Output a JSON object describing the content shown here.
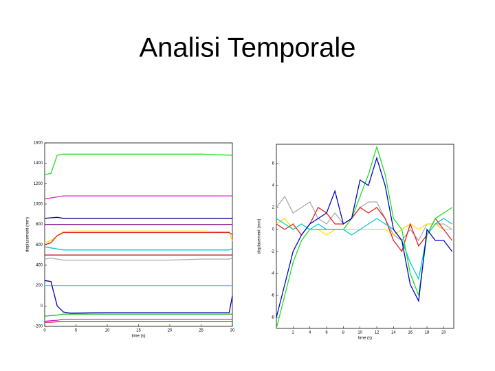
{
  "title": "Analisi Temporale",
  "chart_data": [
    {
      "type": "line",
      "xlabel": "time (s)",
      "ylabel": "displacement (mm)",
      "xlim": [
        0,
        30
      ],
      "xticks": [
        0,
        5,
        10,
        15,
        20,
        25,
        30
      ],
      "ylim": [
        -200,
        1600
      ],
      "yticks": [
        -200,
        0,
        200,
        400,
        600,
        800,
        1000,
        1200,
        1400,
        1600
      ],
      "x": [
        0,
        1,
        2,
        3,
        4,
        5,
        10,
        15,
        20,
        25,
        29.5,
        30
      ],
      "series": [
        {
          "color": "#22dd22",
          "values": [
            1290,
            1300,
            1480,
            1490,
            1490,
            1490,
            1490,
            1490,
            1490,
            1490,
            1480,
            1480
          ]
        },
        {
          "color": "#cc22cc",
          "values": [
            1050,
            1060,
            1070,
            1080,
            1080,
            1080,
            1080,
            1080,
            1080,
            1080,
            1080,
            1080
          ]
        },
        {
          "color": "#000088",
          "values": [
            860,
            865,
            870,
            860,
            860,
            860,
            860,
            860,
            860,
            860,
            860,
            860
          ]
        },
        {
          "color": "#882288",
          "values": [
            800,
            800,
            800,
            800,
            800,
            800,
            800,
            800,
            800,
            800,
            800,
            800
          ]
        },
        {
          "color": "#ffdd00",
          "values": [
            620,
            640,
            690,
            730,
            735,
            735,
            735,
            735,
            735,
            735,
            730,
            640
          ]
        },
        {
          "color": "#dd2222",
          "values": [
            600,
            620,
            690,
            720,
            720,
            720,
            720,
            720,
            720,
            720,
            720,
            700
          ]
        },
        {
          "color": "#00cccc",
          "values": [
            580,
            570,
            560,
            550,
            550,
            550,
            550,
            550,
            550,
            550,
            550,
            560
          ]
        },
        {
          "color": "#aaaaaa",
          "values": [
            460,
            470,
            460,
            450,
            450,
            450,
            450,
            450,
            450,
            460,
            460,
            470
          ]
        },
        {
          "color": "#aa2222",
          "values": [
            500,
            500,
            500,
            500,
            500,
            500,
            500,
            500,
            500,
            500,
            500,
            500
          ]
        },
        {
          "color": "#44dddd",
          "values": [
            200,
            200,
            200,
            200,
            200,
            200,
            200,
            200,
            200,
            200,
            200,
            200
          ]
        },
        {
          "color": "#0000aa",
          "values": [
            250,
            240,
            0,
            -60,
            -70,
            -70,
            -65,
            -65,
            -65,
            -65,
            -65,
            100
          ]
        },
        {
          "color": "#22bb22",
          "values": [
            -100,
            -95,
            -90,
            -80,
            -80,
            -80,
            -80,
            -80,
            -80,
            -80,
            -80,
            -80
          ]
        },
        {
          "color": "#cc22cc",
          "values": [
            -150,
            -145,
            -140,
            -130,
            -130,
            -130,
            -130,
            -130,
            -130,
            -130,
            -130,
            -130
          ]
        },
        {
          "color": "#dd2222",
          "values": [
            -160,
            -160,
            -155,
            -150,
            -150,
            -150,
            -150,
            -150,
            -150,
            -150,
            -150,
            -150
          ]
        }
      ]
    },
    {
      "type": "line",
      "xlabel": "time (s)",
      "ylabel": "displacement (mm)",
      "xlim": [
        0,
        21.2
      ],
      "xticks": [
        2,
        4,
        6,
        8,
        10,
        12,
        14,
        16,
        18,
        20
      ],
      "ylim": [
        -9,
        7.75
      ],
      "yticks": [
        -8,
        -6,
        -4,
        -2,
        0,
        2,
        4,
        6
      ],
      "x": [
        0,
        1,
        2,
        3,
        4,
        5,
        6,
        7,
        8,
        9,
        10,
        11,
        12,
        13,
        14,
        15,
        16,
        17,
        18,
        19,
        20,
        21
      ],
      "series": [
        {
          "color": "#aaaaaa",
          "values": [
            2,
            3,
            1.5,
            2,
            2.5,
            1,
            0.5,
            1.5,
            0.5,
            1,
            2,
            2.5,
            2.5,
            1,
            -0.5,
            -1,
            0,
            -1,
            0.5,
            0.5,
            0.5,
            0
          ]
        },
        {
          "color": "#ffdd00",
          "values": [
            0.5,
            1,
            0,
            0.5,
            0,
            0,
            -0.5,
            0,
            0,
            0,
            0,
            0,
            0,
            0,
            -0.5,
            0,
            0.5,
            0,
            0.5,
            0.5,
            0,
            0
          ]
        },
        {
          "color": "#dd2222",
          "values": [
            0.5,
            0,
            0.5,
            -0.5,
            0.5,
            2,
            1.5,
            0.5,
            0.5,
            1,
            2,
            1.5,
            2,
            1,
            -1,
            -2,
            0.5,
            -1.5,
            -0.5,
            1,
            0,
            -1
          ]
        },
        {
          "color": "#00cccc",
          "values": [
            1,
            0.5,
            0,
            0.5,
            0,
            0.5,
            0,
            0,
            0,
            -0.5,
            0,
            0.5,
            1,
            0.5,
            0,
            -1,
            -3,
            -4.5,
            -0.5,
            0.5,
            1,
            0.5
          ]
        },
        {
          "color": "#22dd22",
          "values": [
            -9,
            -6,
            -3,
            -1,
            0,
            0,
            0,
            0,
            0,
            1,
            3,
            5,
            7.5,
            5,
            1,
            0,
            -4,
            -6,
            -0.5,
            1,
            1.5,
            2
          ]
        },
        {
          "color": "#0000cc",
          "values": [
            -8,
            -5,
            -2,
            -0.5,
            0.5,
            1,
            1.5,
            3.5,
            0.5,
            1,
            4.5,
            4,
            6.5,
            4,
            0,
            -1,
            -5,
            -6.5,
            0,
            -1,
            -1,
            -2
          ]
        }
      ]
    }
  ]
}
